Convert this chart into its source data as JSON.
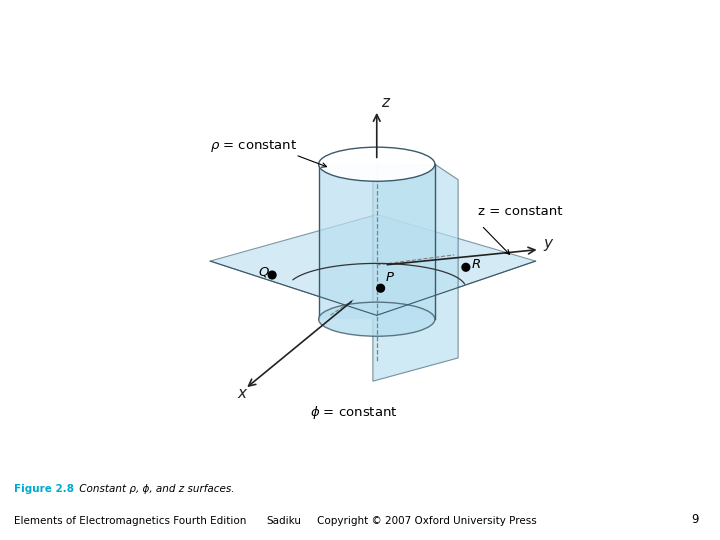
{
  "figure_label": "Figure 2.8",
  "figure_caption": " Constant ρ, ϕ, and z surfaces.",
  "footer_left": "Elements of Electromagnetics Fourth Edition",
  "footer_center": "Sadiku",
  "footer_right": "Copyright © 2007 Oxford University Press",
  "footer_page": "9",
  "figure_label_color": "#00AACC",
  "background_color": "#FFFFFF",
  "cylinder_fill": "#B8DFF0",
  "cylinder_alpha": 0.7,
  "plane_fill": "#B8DFF0",
  "plane_alpha": 0.6,
  "edge_color": "#5A7A8A",
  "axis_color": "#222222",
  "label_rho": "ρ = constant",
  "label_z_const": "z = constant",
  "label_phi": "ϕ = constant",
  "label_x": "x",
  "label_y": "y",
  "label_z_axis": "z",
  "label_P": "P",
  "label_Q": "Q",
  "label_R": "R"
}
